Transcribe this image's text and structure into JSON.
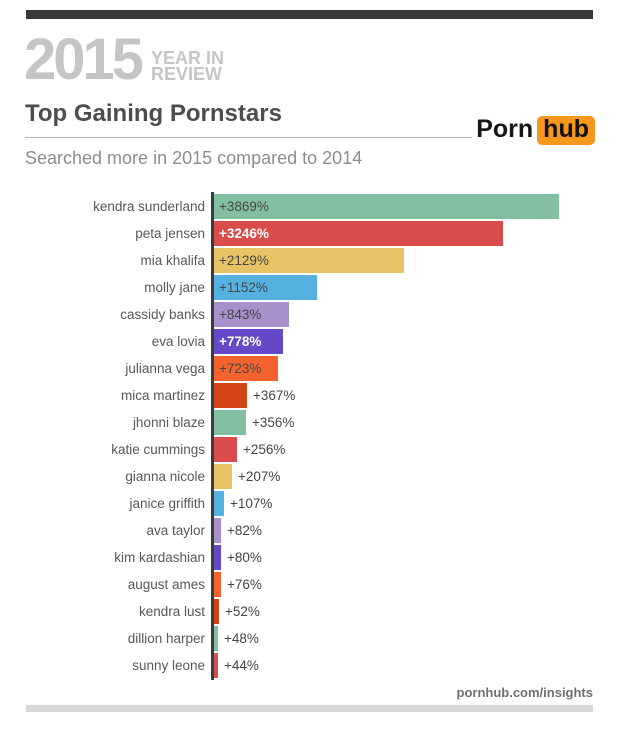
{
  "header": {
    "year": "2015",
    "tagline_line1": "YEAR IN",
    "tagline_line2": "REVIEW"
  },
  "title": "Top Gaining Pornstars",
  "subtitle": "Searched more in 2015 compared to 2014",
  "logo": {
    "part1": "Porn",
    "part2": "hub",
    "accent_color": "#f7971d"
  },
  "footer": {
    "url": "pornhub.com/insights"
  },
  "colors": {
    "top_bar": "#383838",
    "bottom_bar": "#d8d8d8",
    "axis": "#3b3b3b",
    "masthead_text": "#c5c5c5",
    "title_text": "#4d4d4d",
    "subtitle_text": "#8d8d8d",
    "label_text": "#58585a",
    "value_text": "#454546"
  },
  "chart_data": {
    "type": "bar",
    "orientation": "horizontal",
    "title": "Top Gaining Pornstars",
    "subtitle": "Searched more in 2015 compared to 2014",
    "xlabel": "",
    "ylabel": "",
    "xlim": [
      0,
      3869
    ],
    "grid": false,
    "legend": false,
    "categories": [
      "kendra sunderland",
      "peta jensen",
      "mia khalifa",
      "molly jane",
      "cassidy banks",
      "eva lovia",
      "julianna vega",
      "mica martinez",
      "jhonni blaze",
      "katie cummings",
      "gianna nicole",
      "janice griffith",
      "ava taylor",
      "kim kardashian",
      "august ames",
      "kendra lust",
      "dillion harper",
      "sunny leone"
    ],
    "values": [
      3869,
      3246,
      2129,
      1152,
      843,
      778,
      723,
      367,
      356,
      256,
      207,
      107,
      82,
      80,
      76,
      52,
      48,
      44
    ],
    "value_labels": [
      "+3869%",
      "+3246%",
      "+2129%",
      "+1152%",
      "+843%",
      "+778%",
      "+723%",
      "+367%",
      "+356%",
      "+256%",
      "+207%",
      "+107%",
      "+82%",
      "+80%",
      "+76%",
      "+52%",
      "+48%",
      "+44%"
    ],
    "bar_colors": [
      "#82bfa0",
      "#d94c4c",
      "#e7c365",
      "#55b1e0",
      "#a890cb",
      "#6647c8",
      "#f4622e",
      "#d24415",
      "#82bfa0",
      "#d94c4c",
      "#e7c365",
      "#55b1e0",
      "#a890cb",
      "#6647c8",
      "#f4622e",
      "#d24415",
      "#82bfa0",
      "#d94c4c"
    ],
    "value_inside": [
      true,
      true,
      true,
      true,
      true,
      true,
      true,
      false,
      false,
      false,
      false,
      false,
      false,
      false,
      false,
      false,
      false,
      false
    ],
    "value_white_bold": [
      false,
      true,
      false,
      false,
      false,
      true,
      false,
      false,
      false,
      false,
      false,
      false,
      false,
      false,
      false,
      false,
      false,
      false
    ]
  }
}
